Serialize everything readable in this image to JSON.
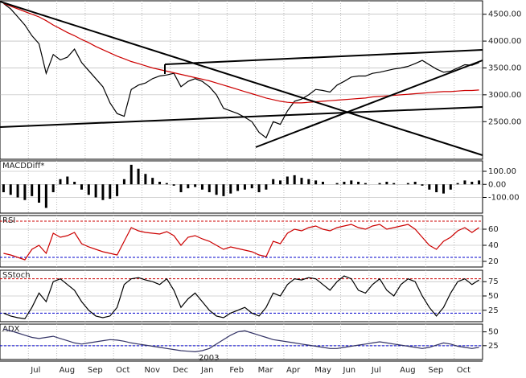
{
  "chart_data": [
    {
      "type": "line",
      "categories": [
        null,
        null,
        null,
        null,
        "Jul",
        null,
        null,
        null,
        "Aug",
        null,
        null,
        null,
        "Sep",
        null,
        null,
        null,
        "Oct",
        null,
        null,
        null,
        "Nov",
        null,
        null,
        null,
        "Dec",
        null,
        null,
        null,
        "Jan",
        null,
        null,
        null,
        "Feb",
        null,
        null,
        null,
        "Mar",
        null,
        null,
        null,
        "Apr",
        null,
        null,
        null,
        "May",
        null,
        null,
        null,
        "Jun",
        null,
        null,
        null,
        "Jul",
        null,
        null,
        null,
        "Aug",
        null,
        null,
        null,
        "Sep",
        null,
        null,
        null,
        "Oct",
        null,
        null,
        null
      ],
      "year_label": "2003",
      "series": [
        {
          "color": "#000000",
          "values": [
            4700,
            4600,
            4450,
            4300,
            4100,
            3950,
            3400,
            3750,
            3650,
            3700,
            3850,
            3600,
            3450,
            3300,
            3150,
            2850,
            2650,
            2600,
            3100,
            3180,
            3220,
            3300,
            3350,
            3370,
            3400,
            3150,
            3250,
            3300,
            3250,
            3150,
            3000,
            2750,
            2700,
            2650,
            2580,
            2500,
            2300,
            2200,
            2500,
            2450,
            2700,
            2880,
            2920,
            3000,
            3100,
            3080,
            3050,
            3180,
            3250,
            3330,
            3350,
            3350,
            3400,
            3420,
            3450,
            3480,
            3500,
            3530,
            3580,
            3640,
            3560,
            3480,
            3420,
            3440,
            3500,
            3560,
            3550,
            3600
          ]
        },
        {
          "color": "#cc0000",
          "values": [
            4700,
            4650,
            4600,
            4550,
            4500,
            4450,
            4380,
            4300,
            4230,
            4160,
            4100,
            4030,
            3970,
            3900,
            3840,
            3780,
            3720,
            3670,
            3620,
            3580,
            3540,
            3500,
            3470,
            3440,
            3410,
            3380,
            3350,
            3320,
            3290,
            3260,
            3220,
            3180,
            3140,
            3100,
            3060,
            3020,
            2980,
            2940,
            2910,
            2880,
            2860,
            2850,
            2850,
            2860,
            2870,
            2880,
            2890,
            2900,
            2910,
            2920,
            2930,
            2940,
            2960,
            2970,
            2980,
            2990,
            3000,
            3010,
            3020,
            3030,
            3040,
            3050,
            3060,
            3060,
            3070,
            3080,
            3080,
            3090
          ]
        }
      ],
      "ylim": [
        1800,
        4750
      ],
      "yticks": [
        {
          "value": 2500,
          "label": "2500.00"
        },
        {
          "value": 3000,
          "label": "3000.00"
        },
        {
          "value": 3500,
          "label": "3500.00"
        },
        {
          "value": 4000,
          "label": "4000.00"
        },
        {
          "value": 4500,
          "label": "4500.00"
        }
      ]
    },
    {
      "type": "bar",
      "title": "MACDDiff*",
      "series": [
        {
          "color": "#000000",
          "values": [
            -60,
            -80,
            -100,
            -120,
            -90,
            -140,
            -180,
            -60,
            40,
            60,
            20,
            -40,
            -80,
            -100,
            -120,
            -110,
            -90,
            40,
            150,
            120,
            80,
            50,
            20,
            10,
            -10,
            -60,
            -30,
            -20,
            -40,
            -60,
            -80,
            -90,
            -70,
            -50,
            -40,
            -30,
            -60,
            -40,
            40,
            30,
            60,
            70,
            50,
            40,
            30,
            20,
            0,
            10,
            20,
            30,
            20,
            10,
            0,
            10,
            20,
            10,
            0,
            10,
            20,
            -10,
            -40,
            -60,
            -70,
            -40,
            10,
            30,
            20,
            30
          ]
        }
      ],
      "ylim": [
        -220,
        180
      ],
      "yticks": [
        {
          "value": 100,
          "label": "100.00"
        },
        {
          "value": 0,
          "label": "0.00"
        },
        {
          "value": -100,
          "label": "-100.00"
        }
      ]
    },
    {
      "type": "line",
      "title": "RSI",
      "series": [
        {
          "color": "#cc0000",
          "values": [
            30,
            28,
            25,
            22,
            35,
            40,
            30,
            55,
            50,
            52,
            56,
            42,
            38,
            35,
            32,
            30,
            28,
            45,
            62,
            58,
            56,
            55,
            54,
            57,
            52,
            40,
            50,
            52,
            48,
            45,
            40,
            35,
            38,
            36,
            34,
            32,
            28,
            26,
            45,
            42,
            55,
            60,
            58,
            62,
            64,
            60,
            58,
            62,
            64,
            66,
            62,
            60,
            64,
            66,
            60,
            62,
            64,
            66,
            60,
            50,
            40,
            35,
            45,
            50,
            58,
            62,
            56,
            62
          ]
        }
      ],
      "ylim": [
        13,
        77
      ],
      "yticks": [
        20,
        40,
        60
      ],
      "ref_lines": [
        {
          "value": 70,
          "color": "#cc0000"
        },
        {
          "value": 25,
          "color": "#0000cc"
        }
      ]
    },
    {
      "type": "line",
      "title": "SStoch",
      "series": [
        {
          "color": "#000000",
          "values": [
            20,
            15,
            12,
            10,
            30,
            55,
            40,
            75,
            80,
            70,
            60,
            40,
            25,
            15,
            12,
            15,
            30,
            70,
            80,
            82,
            78,
            75,
            70,
            80,
            60,
            30,
            45,
            55,
            40,
            25,
            15,
            12,
            20,
            25,
            30,
            20,
            15,
            30,
            55,
            50,
            70,
            80,
            78,
            82,
            80,
            70,
            60,
            75,
            85,
            80,
            60,
            55,
            70,
            80,
            60,
            50,
            70,
            80,
            75,
            50,
            30,
            15,
            30,
            55,
            75,
            80,
            70,
            78
          ]
        }
      ],
      "ylim": [
        5,
        95
      ],
      "yticks": [
        25,
        50,
        75
      ],
      "ref_lines": [
        {
          "value": 80,
          "color": "#cc0000"
        },
        {
          "value": 20,
          "color": "#0000cc"
        }
      ]
    },
    {
      "type": "line",
      "title": "ADX",
      "series": [
        {
          "color": "#333366",
          "values": [
            55,
            52,
            48,
            44,
            40,
            38,
            40,
            42,
            38,
            34,
            30,
            28,
            30,
            32,
            34,
            36,
            35,
            33,
            30,
            28,
            26,
            24,
            22,
            20,
            18,
            16,
            15,
            14,
            16,
            20,
            28,
            36,
            44,
            50,
            52,
            48,
            44,
            40,
            36,
            34,
            32,
            30,
            28,
            26,
            24,
            22,
            20,
            20,
            22,
            24,
            26,
            28,
            30,
            32,
            30,
            28,
            26,
            24,
            22,
            20,
            22,
            26,
            30,
            28,
            24,
            22,
            20,
            22
          ]
        }
      ],
      "ylim": [
        0,
        64
      ],
      "yticks": [
        25,
        50
      ],
      "ref_lines": [
        {
          "value": 25,
          "color": "#0000cc"
        }
      ]
    }
  ]
}
